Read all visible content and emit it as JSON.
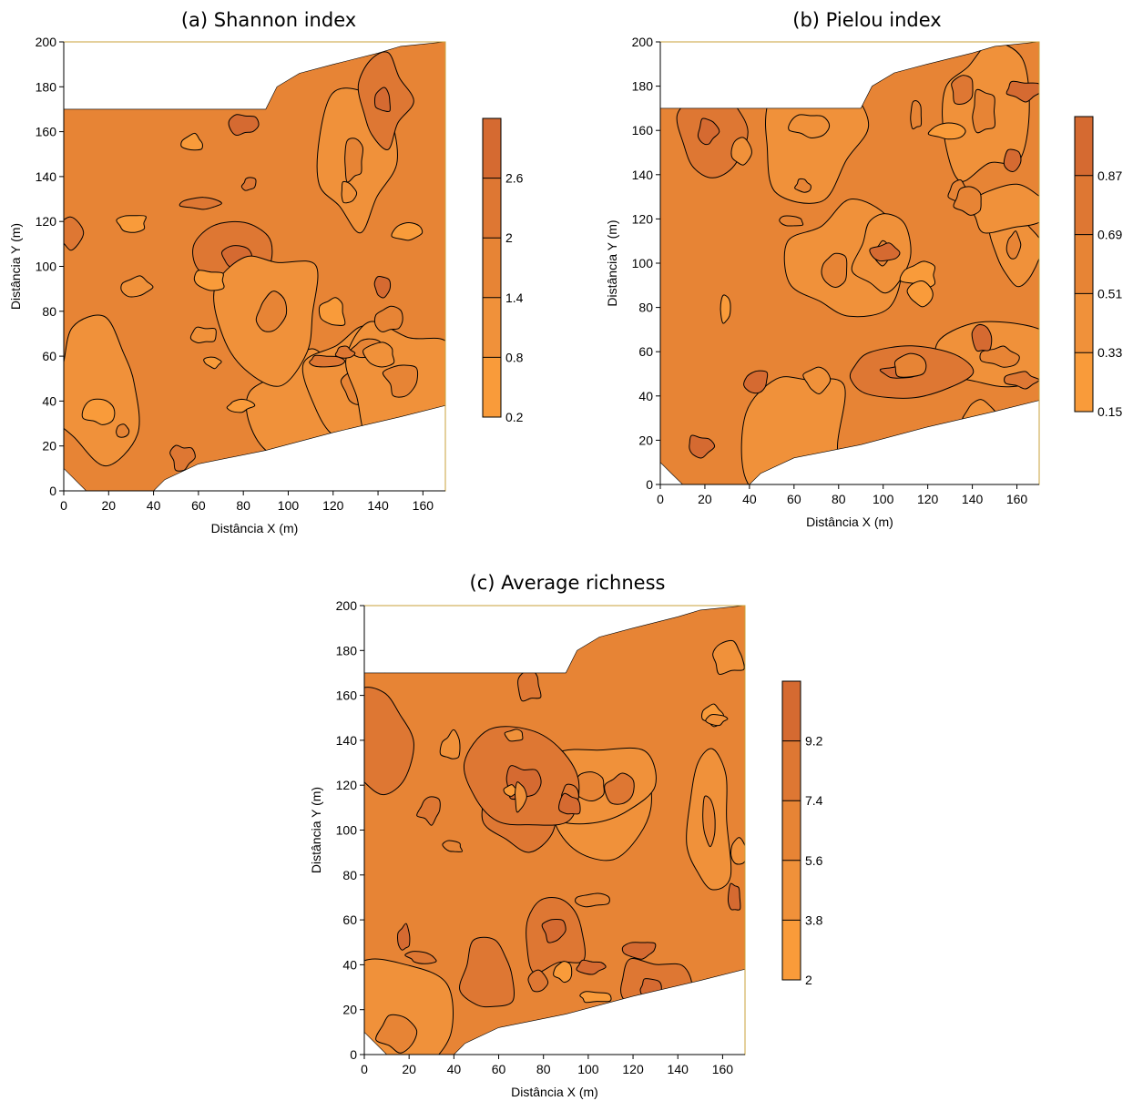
{
  "chart_data": [
    {
      "type": "heatmap",
      "subtype": "filled contour map",
      "title": "(a) Shannon index",
      "xlabel": "Distância X (m)",
      "ylabel": "Distância Y (m)",
      "xlim": [
        0,
        170
      ],
      "ylim": [
        0,
        200
      ],
      "x_ticks": [
        "0",
        "20",
        "40",
        "60",
        "80",
        "100",
        "120",
        "140",
        "160"
      ],
      "y_ticks": [
        "0",
        "20",
        "40",
        "60",
        "80",
        "100",
        "120",
        "140",
        "160",
        "180",
        "200"
      ],
      "colorbar_ticks": [
        "0.2",
        "0.8",
        "1.4",
        "2",
        "2.6"
      ],
      "colorbar_levels": [
        0.2,
        0.8,
        1.4,
        2.0,
        2.6,
        3.2
      ],
      "colors": [
        "#F99B3A",
        "#F0913A",
        "#E78435",
        "#DE7733",
        "#D56A31"
      ],
      "grid": false,
      "legend": "colorbar-right"
    },
    {
      "type": "heatmap",
      "subtype": "filled contour map",
      "title": "(b) Pielou index",
      "xlabel": "Distância X (m)",
      "ylabel": "Distância Y (m)",
      "xlim": [
        0,
        170
      ],
      "ylim": [
        0,
        200
      ],
      "x_ticks": [
        "0",
        "20",
        "40",
        "60",
        "80",
        "100",
        "120",
        "140",
        "160"
      ],
      "y_ticks": [
        "0",
        "20",
        "40",
        "60",
        "80",
        "100",
        "120",
        "140",
        "160",
        "180",
        "200"
      ],
      "colorbar_ticks": [
        "0.15",
        "0.33",
        "0.51",
        "0.69",
        "0.87"
      ],
      "colorbar_levels": [
        0.15,
        0.33,
        0.51,
        0.69,
        0.87,
        1.05
      ],
      "colors": [
        "#F99B3A",
        "#F0913A",
        "#E78435",
        "#DE7733",
        "#D56A31"
      ],
      "grid": false,
      "legend": "colorbar-right"
    },
    {
      "type": "heatmap",
      "subtype": "filled contour map",
      "title": "(c) Average richness",
      "xlabel": "Distância X (m)",
      "ylabel": "Distância Y (m)",
      "xlim": [
        0,
        170
      ],
      "ylim": [
        0,
        200
      ],
      "x_ticks": [
        "0",
        "20",
        "40",
        "60",
        "80",
        "100",
        "120",
        "140",
        "160"
      ],
      "y_ticks": [
        "0",
        "20",
        "40",
        "60",
        "80",
        "100",
        "120",
        "140",
        "160",
        "180",
        "200"
      ],
      "colorbar_ticks": [
        "2",
        "3.8",
        "5.6",
        "7.4",
        "9.2"
      ],
      "colorbar_levels": [
        2,
        3.8,
        5.6,
        7.4,
        9.2,
        11
      ],
      "colors": [
        "#F99B3A",
        "#F0913A",
        "#E78435",
        "#DE7733",
        "#D56A31"
      ],
      "grid": false,
      "legend": "colorbar-right"
    }
  ]
}
